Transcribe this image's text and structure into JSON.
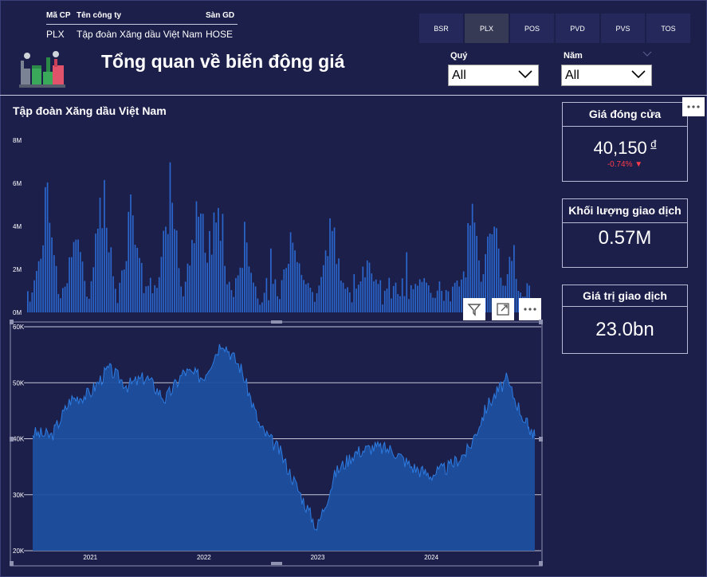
{
  "stock_table": {
    "headers": [
      "Mã CP",
      "Tên công ty",
      "Sàn GD"
    ],
    "row": [
      "PLX",
      "Tập đoàn Xăng dầu Việt Nam",
      "HOSE"
    ]
  },
  "tickers": [
    "BSR",
    "PLX",
    "POS",
    "PVD",
    "PVS",
    "TOS"
  ],
  "selected_ticker": "PLX",
  "page_title": "Tổng quan về biến động giá",
  "filters": {
    "quarter": {
      "label": "Quý",
      "value": "All"
    },
    "year": {
      "label": "Năm",
      "value": "All"
    }
  },
  "company_title": "Tập đoàn Xăng dầu Việt Nam",
  "cards": {
    "close": {
      "title": "Giá đóng cửa",
      "value": "40,150",
      "unit": "đ",
      "change": "-0.74%"
    },
    "volume": {
      "title": "Khối lượng giao dịch",
      "value": "0.57M"
    },
    "turnover": {
      "title": "Giá trị giao dịch",
      "value": "23.0bn"
    }
  },
  "colors": {
    "background": "#1c1f4a",
    "series": "#1f5fbf",
    "series_fill": "#1d4f9e",
    "negative": "#ff3b4a"
  },
  "icons": [
    "factory-icon",
    "filter-icon",
    "focus-mode-icon",
    "more-options-icon",
    "chevron-down-icon"
  ],
  "chart_data": [
    {
      "type": "bar",
      "title": "",
      "x_ticks": [],
      "y_ticks": [
        "0M",
        "2M",
        "4M",
        "6M",
        "8M"
      ],
      "ylim": [
        0,
        8
      ],
      "y_unit": "M",
      "x_range": [
        "2020-07",
        "2024-12"
      ],
      "bars_count": 230,
      "peaks": [
        {
          "x": "2020-09",
          "y": 6.5
        },
        {
          "x": "2020-12",
          "y": 4.8
        },
        {
          "x": "2021-03",
          "y": 7.6
        },
        {
          "x": "2021-06",
          "y": 6.8
        },
        {
          "x": "2021-10",
          "y": 7.2
        },
        {
          "x": "2022-01",
          "y": 7.7
        },
        {
          "x": "2022-03",
          "y": 6.4
        },
        {
          "x": "2022-06",
          "y": 4.5
        },
        {
          "x": "2022-11",
          "y": 5.5
        },
        {
          "x": "2023-03",
          "y": 5.7
        },
        {
          "x": "2023-07",
          "y": 3.8
        },
        {
          "x": "2024-01",
          "y": 2.4
        },
        {
          "x": "2024-06",
          "y": 5.3
        },
        {
          "x": "2024-08",
          "y": 6.0
        },
        {
          "x": "2024-10",
          "y": 3.0
        }
      ]
    },
    {
      "type": "area",
      "title": "",
      "x_ticks": [
        "2021",
        "2022",
        "2023",
        "2024"
      ],
      "y_ticks": [
        "20K",
        "30K",
        "40K",
        "50K",
        "60K"
      ],
      "ylim": [
        20000,
        60000
      ],
      "grid": true,
      "x": [
        "2020-07",
        "2020-09",
        "2020-11",
        "2021-01",
        "2021-03",
        "2021-05",
        "2021-07",
        "2021-09",
        "2021-11",
        "2022-01",
        "2022-03",
        "2022-05",
        "2022-07",
        "2022-09",
        "2022-11",
        "2023-01",
        "2023-03",
        "2023-05",
        "2023-07",
        "2023-09",
        "2023-11",
        "2024-01",
        "2024-03",
        "2024-05",
        "2024-07",
        "2024-09",
        "2024-11",
        "2024-12"
      ],
      "values": [
        41000,
        40500,
        47000,
        48000,
        52500,
        49500,
        51000,
        47000,
        52000,
        51000,
        57500,
        52500,
        42000,
        38000,
        31000,
        24000,
        34000,
        37500,
        38500,
        38000,
        35000,
        33500,
        35000,
        38000,
        46000,
        50500,
        43000,
        40500
      ]
    }
  ]
}
